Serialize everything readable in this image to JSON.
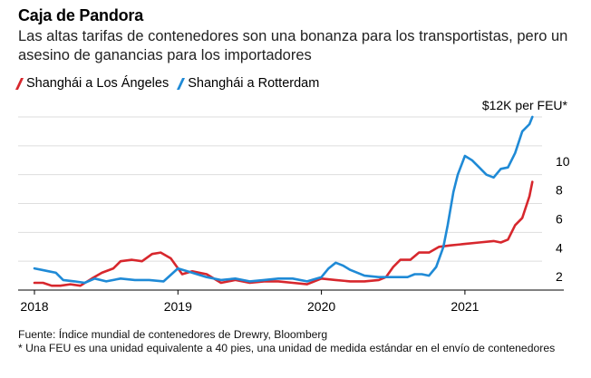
{
  "header": {
    "title": "Caja de Pandora",
    "subtitle": "Las altas tarifas de contenedores son una bonanza para los transportistas, pero un asesino de ganancias para los importadores"
  },
  "legend": [
    {
      "name": "Shanghái a Los Ángeles",
      "color": "#d7272d"
    },
    {
      "name": "Shanghái a Rotterdam",
      "color": "#1f8ad6"
    }
  ],
  "footer": {
    "source": "Fuente: Índice mundial de contenedores de Drewry, Bloomberg",
    "note": "* Una FEU es una unidad equivalente a 40 pies, una unidad de medida estándar en el envío de contenedores"
  },
  "chart_data": {
    "type": "line",
    "unit_label": "$12K per FEU*",
    "ylim": [
      0,
      12
    ],
    "xlim": [
      2018.0,
      2021.7
    ],
    "y_ticks": [
      {
        "value": 12,
        "label": "$12K per FEU*"
      },
      {
        "value": 10,
        "label": "10"
      },
      {
        "value": 8,
        "label": "8"
      },
      {
        "value": 6,
        "label": "6"
      },
      {
        "value": 4,
        "label": "4"
      },
      {
        "value": 2,
        "label": "2"
      }
    ],
    "x_ticks": [
      {
        "value": 2018,
        "label": "2018"
      },
      {
        "value": 2019,
        "label": "2019"
      },
      {
        "value": 2020,
        "label": "2020"
      },
      {
        "value": 2021,
        "label": "2021"
      }
    ],
    "grid": true,
    "series": [
      {
        "name": "Shanghái a Los Ángeles",
        "color": "#d7272d",
        "x": [
          2018.0,
          2018.06,
          2018.12,
          2018.18,
          2018.25,
          2018.32,
          2018.4,
          2018.47,
          2018.55,
          2018.6,
          2018.68,
          2018.75,
          2018.82,
          2018.88,
          2018.95,
          2019.03,
          2019.1,
          2019.2,
          2019.3,
          2019.4,
          2019.5,
          2019.6,
          2019.7,
          2019.8,
          2019.9,
          2020.0,
          2020.1,
          2020.2,
          2020.3,
          2020.4,
          2020.45,
          2020.5,
          2020.55,
          2020.62,
          2020.68,
          2020.75,
          2020.82,
          2020.9,
          2021.0,
          2021.1,
          2021.2,
          2021.25,
          2021.3,
          2021.35,
          2021.4,
          2021.45,
          2021.47
        ],
        "y": [
          0.5,
          0.5,
          0.3,
          0.3,
          0.4,
          0.3,
          0.8,
          1.2,
          1.5,
          2.0,
          2.1,
          2.0,
          2.5,
          2.6,
          2.2,
          1.1,
          1.3,
          1.1,
          0.5,
          0.7,
          0.5,
          0.6,
          0.6,
          0.5,
          0.4,
          0.8,
          0.7,
          0.6,
          0.6,
          0.7,
          0.9,
          1.6,
          2.1,
          2.1,
          2.6,
          2.6,
          3.0,
          3.1,
          3.2,
          3.3,
          3.4,
          3.3,
          3.5,
          4.5,
          5.0,
          6.5,
          7.5
        ]
      },
      {
        "name": "Shanghái a Rotterdam",
        "color": "#1f8ad6",
        "x": [
          2018.0,
          2018.05,
          2018.1,
          2018.15,
          2018.2,
          2018.28,
          2018.35,
          2018.42,
          2018.5,
          2018.6,
          2018.7,
          2018.8,
          2018.9,
          2019.0,
          2019.1,
          2019.2,
          2019.3,
          2019.4,
          2019.5,
          2019.6,
          2019.7,
          2019.8,
          2019.9,
          2020.0,
          2020.05,
          2020.1,
          2020.15,
          2020.2,
          2020.3,
          2020.4,
          2020.5,
          2020.6,
          2020.65,
          2020.7,
          2020.75,
          2020.8,
          2020.85,
          2020.88,
          2020.92,
          2020.95,
          2021.0,
          2021.05,
          2021.1,
          2021.15,
          2021.2,
          2021.25,
          2021.3,
          2021.35,
          2021.4,
          2021.45,
          2021.47
        ],
        "y": [
          1.5,
          1.4,
          1.3,
          1.2,
          0.7,
          0.6,
          0.5,
          0.8,
          0.6,
          0.8,
          0.7,
          0.7,
          0.6,
          1.5,
          1.2,
          0.9,
          0.7,
          0.8,
          0.6,
          0.7,
          0.8,
          0.8,
          0.6,
          0.9,
          1.5,
          1.9,
          1.7,
          1.4,
          1.0,
          0.9,
          0.9,
          0.9,
          1.1,
          1.1,
          1.0,
          1.6,
          3.0,
          4.5,
          6.8,
          8.0,
          9.3,
          9.0,
          8.5,
          8.0,
          7.8,
          8.4,
          8.5,
          9.5,
          11.0,
          11.5,
          12.0
        ]
      }
    ]
  }
}
